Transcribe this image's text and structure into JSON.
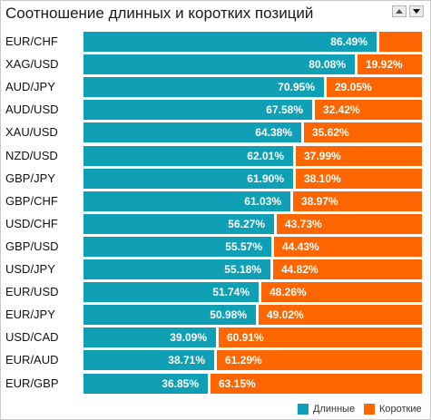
{
  "header": {
    "title": "Соотношение длинных и коротких позиций"
  },
  "chart_data": {
    "type": "bar",
    "stacked": true,
    "orientation": "horizontal",
    "xlim": [
      0,
      100
    ],
    "categories": [
      "EUR/CHF",
      "XAG/USD",
      "AUD/JPY",
      "AUD/USD",
      "XAU/USD",
      "NZD/USD",
      "GBP/JPY",
      "GBP/CHF",
      "USD/CHF",
      "GBP/USD",
      "USD/JPY",
      "EUR/USD",
      "EUR/JPY",
      "USD/CAD",
      "EUR/AUD",
      "EUR/GBP"
    ],
    "series": [
      {
        "name": "Длинные",
        "color": "#0fa0b5",
        "values": [
          86.49,
          80.08,
          70.95,
          67.58,
          64.38,
          62.01,
          61.9,
          61.03,
          56.27,
          55.57,
          55.18,
          51.74,
          50.98,
          39.09,
          38.71,
          36.85
        ],
        "labels": [
          "86.49%",
          "80.08%",
          "70.95%",
          "67.58%",
          "64.38%",
          "62.01%",
          "61.90%",
          "61.03%",
          "56.27%",
          "55.57%",
          "55.18%",
          "51.74%",
          "50.98%",
          "39.09%",
          "38.71%",
          "36.85%"
        ]
      },
      {
        "name": "Короткие",
        "color": "#ff6600",
        "values": [
          13.51,
          19.92,
          29.05,
          32.42,
          35.62,
          37.99,
          38.1,
          38.97,
          43.73,
          44.43,
          44.82,
          48.26,
          49.02,
          60.91,
          61.29,
          63.15
        ],
        "labels": [
          "",
          "19.92%",
          "29.05%",
          "32.42%",
          "35.62%",
          "37.99%",
          "38.10%",
          "38.97%",
          "43.73%",
          "44.43%",
          "44.82%",
          "48.26%",
          "49.02%",
          "60.91%",
          "61.29%",
          "63.15%"
        ]
      }
    ],
    "legend": {
      "placement": "bottom-right"
    }
  }
}
